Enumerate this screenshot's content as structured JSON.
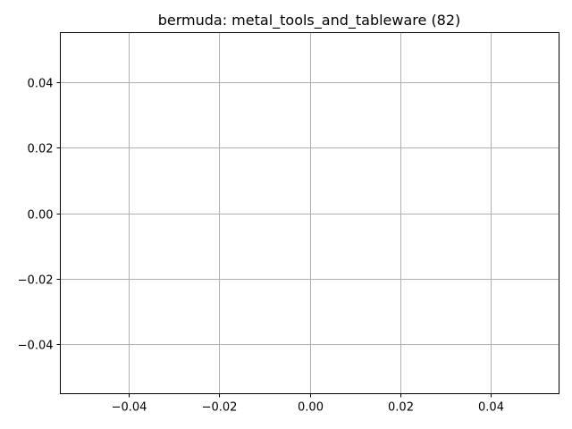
{
  "chart_data": {
    "type": "scatter",
    "title": "bermuda: metal_tools_and_tableware (82)",
    "xlabel": "",
    "ylabel": "",
    "xlim": [
      -0.055,
      0.055
    ],
    "ylim": [
      -0.055,
      0.055
    ],
    "x_ticks": [
      -0.04,
      -0.02,
      0.0,
      0.02,
      0.04
    ],
    "y_ticks": [
      -0.04,
      -0.02,
      0.0,
      0.02,
      0.04
    ],
    "x_tick_labels": [
      "−0.04",
      "−0.02",
      "0.00",
      "0.02",
      "0.04"
    ],
    "y_tick_labels": [
      "−0.04",
      "−0.02",
      "0.00",
      "0.02",
      "0.04"
    ],
    "grid": true,
    "series": [
      {
        "x": [],
        "y": []
      }
    ],
    "colors": {
      "grid": "#b0b0b0",
      "axes": "#000000",
      "background": "#ffffff"
    }
  }
}
